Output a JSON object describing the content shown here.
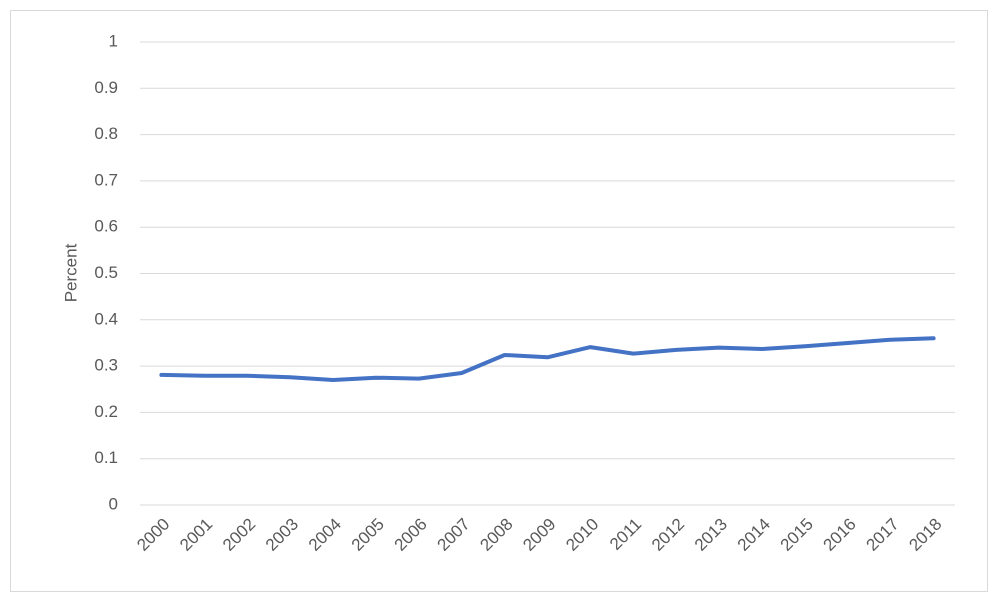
{
  "chart_data": {
    "type": "line",
    "y_label": "Percent",
    "categories": [
      "2000",
      "2001",
      "2002",
      "2003",
      "2004",
      "2005",
      "2006",
      "2007",
      "2008",
      "2009",
      "2010",
      "2011",
      "2012",
      "2013",
      "2014",
      "2015",
      "2016",
      "2017",
      "2018"
    ],
    "series": [
      {
        "color": "#4472c4",
        "values": [
          0.281,
          0.279,
          0.279,
          0.276,
          0.27,
          0.275,
          0.273,
          0.285,
          0.324,
          0.319,
          0.341,
          0.327,
          0.335,
          0.34,
          0.337,
          0.343,
          0.35,
          0.357,
          0.36
        ]
      }
    ],
    "ylim": [
      0,
      1
    ],
    "yticks": [
      0,
      0.1,
      0.2,
      0.3,
      0.4,
      0.5,
      0.6,
      0.7,
      0.8,
      0.9,
      1
    ],
    "grid": true
  }
}
